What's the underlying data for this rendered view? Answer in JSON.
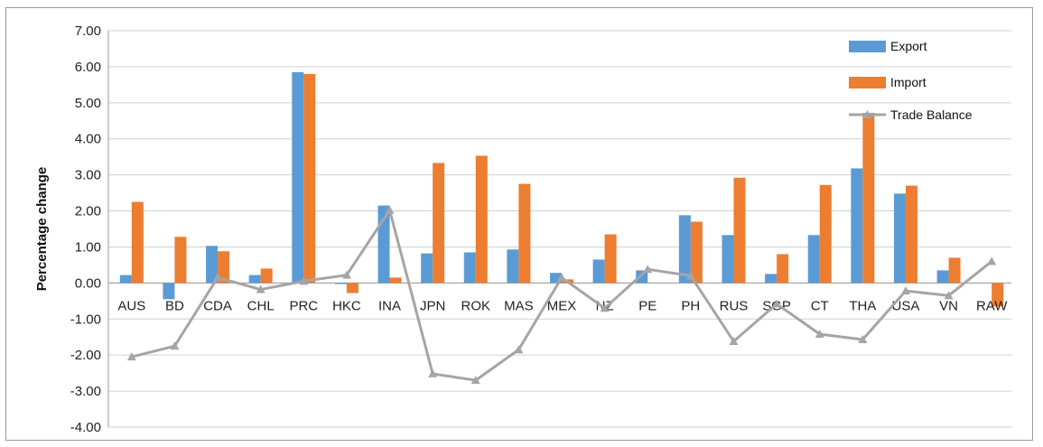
{
  "chart_data": {
    "type": "bar",
    "ylabel": "Percentage change",
    "ylim": [
      -4,
      7
    ],
    "yticks": [
      "7.00",
      "6.00",
      "5.00",
      "4.00",
      "3.00",
      "2.00",
      "1.00",
      "0.00",
      "-1.00",
      "-2.00",
      "-3.00",
      "-4.00"
    ],
    "grid": true,
    "legend_position": "top-right",
    "categories": [
      "AUS",
      "BD",
      "CDA",
      "CHL",
      "PRC",
      "HKC",
      "INA",
      "JPN",
      "ROK",
      "MAS",
      "MEX",
      "NZ",
      "PE",
      "PH",
      "RUS",
      "SGP",
      "CT",
      "THA",
      "USA",
      "VN",
      "RAW"
    ],
    "series": [
      {
        "name": "Export",
        "kind": "bar",
        "color": "#5b9bd5",
        "values": [
          0.22,
          -0.45,
          1.03,
          0.22,
          5.85,
          -0.03,
          2.15,
          0.82,
          0.85,
          0.93,
          0.28,
          0.65,
          0.35,
          1.88,
          1.33,
          0.25,
          1.33,
          3.18,
          2.48,
          0.35,
          0.0
        ]
      },
      {
        "name": "Import",
        "kind": "bar",
        "color": "#ed7d31",
        "values": [
          2.25,
          1.28,
          0.88,
          0.4,
          5.8,
          -0.28,
          0.15,
          3.33,
          3.53,
          2.75,
          0.1,
          1.35,
          0.0,
          1.7,
          2.92,
          0.8,
          2.72,
          4.72,
          2.7,
          0.7,
          -0.65
        ]
      },
      {
        "name": "Trade Balance",
        "kind": "line",
        "color": "#a5a5a5",
        "values": [
          -2.05,
          -1.75,
          0.15,
          -0.18,
          0.05,
          0.22,
          2.02,
          -2.52,
          -2.7,
          -1.85,
          0.15,
          -0.7,
          0.38,
          0.2,
          -1.62,
          -0.58,
          -1.42,
          -1.57,
          -0.22,
          -0.35,
          0.6
        ]
      }
    ]
  }
}
